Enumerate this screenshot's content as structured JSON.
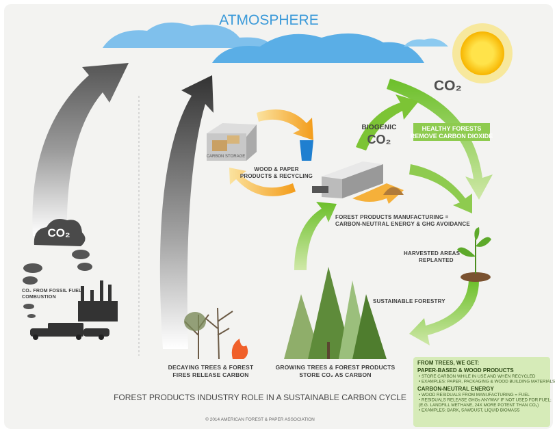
{
  "atmosphere": "ATMOSPHERE",
  "co2_top": "CO₂",
  "biogenic": {
    "lines": [
      "BIOGENIC",
      "CO₂"
    ]
  },
  "healthy_forests": {
    "lines": [
      "HEALTHY FORESTS",
      "REMOVE CARBON DIOXIDE"
    ]
  },
  "carbon_storage": "CARBON STORAGE",
  "wood_paper": {
    "lines": [
      "WOOD & PAPER",
      "PRODUCTS & RECYCLING"
    ]
  },
  "manufacturing": {
    "lines": [
      "FOREST PRODUCTS MANUFACTURING =",
      "CARBON-NEUTRAL ENERGY & GHG AVOIDANCE"
    ]
  },
  "harvested": {
    "lines": [
      "HARVESTED AREAS",
      "REPLANTED"
    ]
  },
  "sustainable_forestry": "SUSTAINABLE FORESTRY",
  "co2_cloud": "CO₂",
  "fossil": {
    "lines": [
      "CO₂ FROM FOSSIL FUEL",
      "COMBUSTION"
    ]
  },
  "decaying": {
    "lines": [
      "DECAYING TREES  & FOREST",
      "FIRES RELEASE CARBON"
    ]
  },
  "growing": {
    "lines": [
      "GROWING TREES & FOREST PRODUCTS",
      "STORE CO₂ AS CARBON"
    ]
  },
  "footer": {
    "title": "FOREST PRODUCTS INDUSTRY ROLE IN A SUSTAINABLE CARBON CYCLE",
    "copyright": "© 2014 AMERICAN FOREST & PAPER ASSOCIATION"
  },
  "info_box": {
    "heading": "FROM TREES, WE GET:",
    "sections": [
      {
        "title": "PAPER-BASED & WOOD PRODUCTS",
        "items": [
          "• STORE CARBON WHILE IN USE AND WHEN RECYCLED",
          "• EXAMPLES: PAPER, PACKAGING & WOOD BUILDING MATERIALS"
        ]
      },
      {
        "title": "CARBON-NEUTRAL ENERGY",
        "items": [
          "• WOOD RESIDUALS FROM MANUFACTURING = FUEL",
          "• RESIDUALS RELEASE GHGs ANYWAY IF NOT USED FOR FUEL;",
          "  (E.G. LANDFILL METHANE, 24X MORE POTENT THAN CO₂)",
          "• EXAMPLES: BARK, SAWDUST, LIQUID BIOMASS"
        ]
      }
    ]
  }
}
